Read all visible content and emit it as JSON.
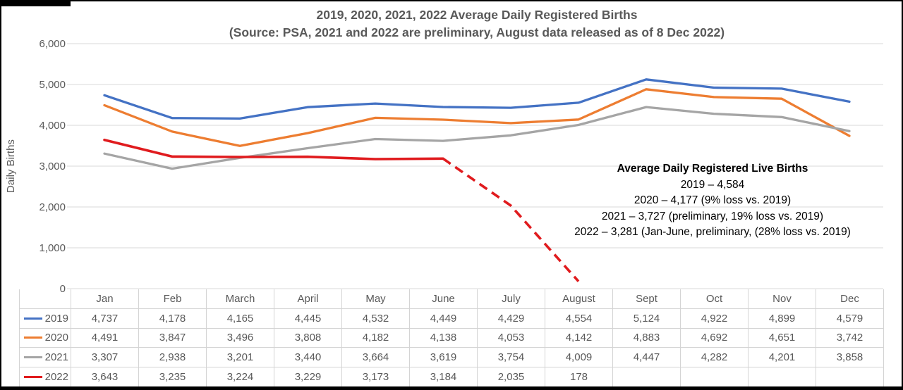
{
  "chart_data": {
    "type": "line",
    "title": "2019, 2020, 2021, 2022 Average Daily Registered Births",
    "subtitle": "(Source: PSA, 2021 and 2022 are preliminary, August data released as of 8 Dec 2022)",
    "ylabel": "Daily Births",
    "xlabel": "",
    "ylim": [
      0,
      6000
    ],
    "grid": true,
    "legend_position": "data-table-left-column",
    "y_ticks": {
      "values": [
        0,
        1000,
        2000,
        3000,
        4000,
        5000,
        6000
      ],
      "labels": [
        "0",
        "1,000",
        "2,000",
        "3,000",
        "4,000",
        "5,000",
        "6,000"
      ]
    },
    "categories": [
      "Jan",
      "Feb",
      "March",
      "April",
      "May",
      "June",
      "July",
      "August",
      "Sept",
      "Oct",
      "Nov",
      "Dec"
    ],
    "series": [
      {
        "name": "2019",
        "color": "#4472c4",
        "line_style": "solid",
        "values": [
          4737,
          4178,
          4165,
          4445,
          4532,
          4449,
          4429,
          4554,
          5124,
          4922,
          4899,
          4579
        ]
      },
      {
        "name": "2020",
        "color": "#ed7d31",
        "line_style": "solid",
        "values": [
          4491,
          3847,
          3496,
          3808,
          4182,
          4138,
          4053,
          4142,
          4883,
          4692,
          4651,
          3742
        ]
      },
      {
        "name": "2021",
        "color": "#a5a5a5",
        "line_style": "solid",
        "values": [
          3307,
          2938,
          3201,
          3440,
          3664,
          3619,
          3754,
          4009,
          4447,
          4282,
          4201,
          3858
        ]
      },
      {
        "name": "2022",
        "color": "#e01b1e",
        "line_style": "solid then dashed from June",
        "dash_from_index": 5,
        "values": [
          3643,
          3235,
          3224,
          3229,
          3173,
          3184,
          2035,
          178,
          null,
          null,
          null,
          null
        ]
      }
    ],
    "annotation": {
      "heading": "Average Daily Registered Live Births",
      "lines": [
        "2019 – 4,584",
        "2020 – 4,177 (9% loss vs. 2019)",
        "2021 – 3,727 (preliminary, 19% loss vs. 2019)",
        "2022 – 3,281 (Jan-June, preliminary, (28% loss vs. 2019)"
      ]
    }
  }
}
